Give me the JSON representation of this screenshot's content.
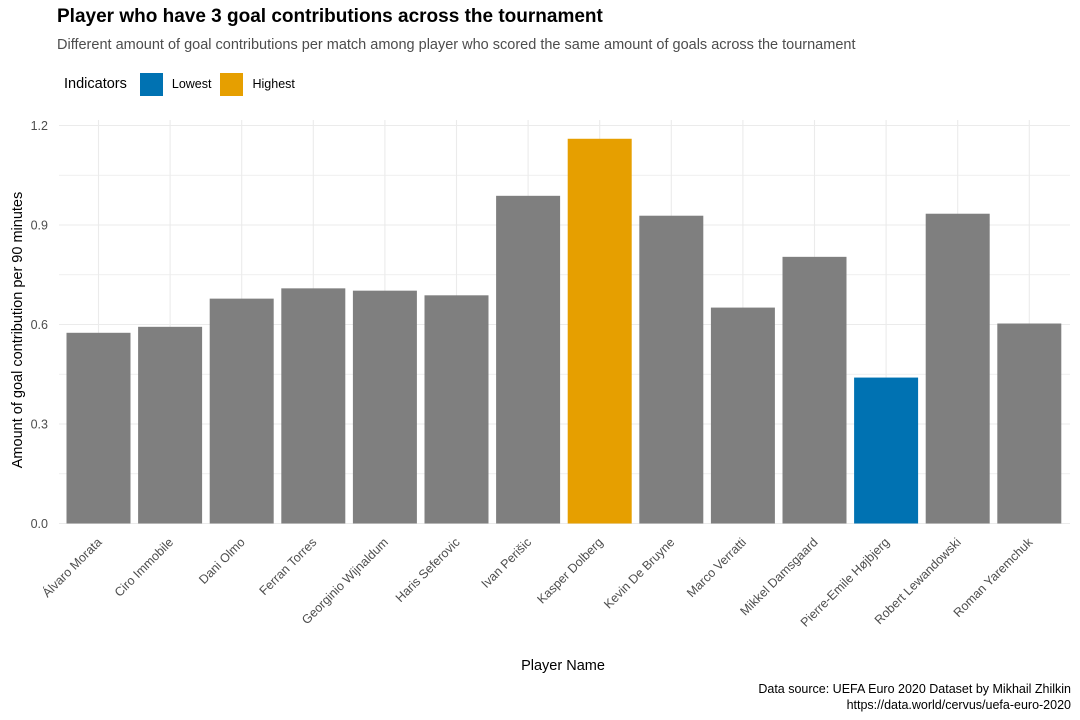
{
  "chart_data": {
    "type": "bar",
    "title": "Player who have 3 goal contributions across the tournament",
    "subtitle": "Different amount of goal contributions per match among player who scored the same amount of goals across the tournament",
    "xlabel": "Player Name",
    "ylabel": "Amount of goal contribution per 90 minutes",
    "ylim": [
      0,
      1.2
    ],
    "yticks": [
      "0.0",
      "0.3",
      "0.6",
      "0.9",
      "1.2"
    ],
    "grid": true,
    "legend": {
      "title": "Indicators",
      "placement": "top-left",
      "entries": [
        {
          "label": "Lowest",
          "color": "#0072B2"
        },
        {
          "label": "Highest",
          "color": "#E69F00"
        }
      ]
    },
    "default_color": "#7F7F7F",
    "categories": [
      "Álvaro Morata",
      "Ciro Immobile",
      "Dani Olmo",
      "Ferran Torres",
      "Georginio Wijnaldum",
      "Haris Seferovic",
      "Ivan Perišic",
      "Kasper Dolberg",
      "Kevin De Bruyne",
      "Marco Verratti",
      "Mikkel Damsgaard",
      "Pierre-Emile Højbjerg",
      "Robert Lewandowski",
      "Roman Yaremchuk"
    ],
    "values": [
      0.575,
      0.593,
      0.678,
      0.709,
      0.702,
      0.688,
      0.988,
      1.16,
      0.928,
      0.651,
      0.804,
      0.44,
      0.934,
      0.603
    ],
    "indicators": [
      "",
      "",
      "",
      "",
      "",
      "",
      "",
      "Highest",
      "",
      "",
      "",
      "Lowest",
      "",
      ""
    ]
  },
  "caption": {
    "line1": "Data source: UEFA Euro 2020 Dataset by Mikhail Zhilkin",
    "line2": "https://data.world/cervus/uefa-euro-2020"
  }
}
